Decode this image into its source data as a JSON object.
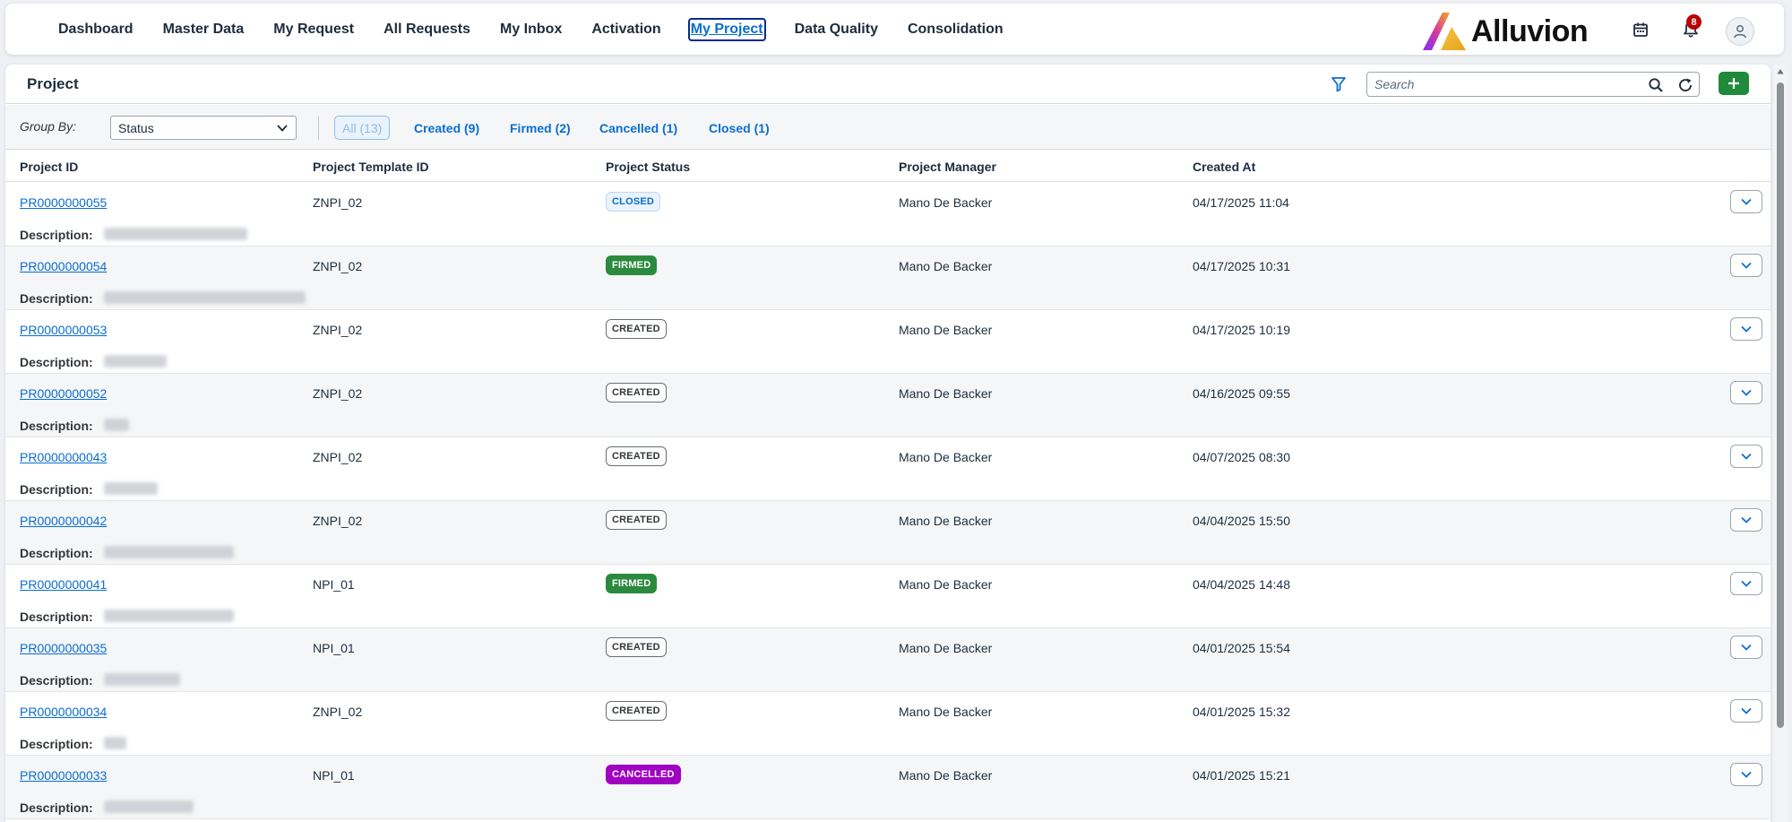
{
  "nav": {
    "items": [
      {
        "label": "Dashboard",
        "active": false
      },
      {
        "label": "Master Data",
        "active": false
      },
      {
        "label": "My Request",
        "active": false
      },
      {
        "label": "All Requests",
        "active": false
      },
      {
        "label": "My Inbox",
        "active": false
      },
      {
        "label": "Activation",
        "active": false
      },
      {
        "label": "My Project",
        "active": true
      },
      {
        "label": "Data Quality",
        "active": false
      },
      {
        "label": "Consolidation",
        "active": false
      }
    ],
    "logo_text": "Alluvion",
    "notification_count": "8",
    "icons": [
      "calendar-icon",
      "bell-icon",
      "user-icon"
    ]
  },
  "panel": {
    "title": "Project",
    "search_placeholder": "Search",
    "group_by_label": "Group By:",
    "group_by_value": "Status",
    "segments": [
      {
        "label": "All (13)",
        "selected": true
      },
      {
        "label": "Created (9)",
        "selected": false
      },
      {
        "label": "Firmed (2)",
        "selected": false
      },
      {
        "label": "Cancelled (1)",
        "selected": false
      },
      {
        "label": "Closed (1)",
        "selected": false
      }
    ]
  },
  "table": {
    "columns": [
      "Project ID",
      "Project Template ID",
      "Project Status",
      "Project Manager",
      "Created At"
    ],
    "description_label": "Description:",
    "rows": [
      {
        "id": "PR0000000055",
        "template": "ZNPI_02",
        "status": "CLOSED",
        "status_kind": "closed",
        "manager": "Mano De Backer",
        "created": "04/17/2025 11:04"
      },
      {
        "id": "PR0000000054",
        "template": "ZNPI_02",
        "status": "FIRMED",
        "status_kind": "firmed",
        "manager": "Mano De Backer",
        "created": "04/17/2025 10:31"
      },
      {
        "id": "PR0000000053",
        "template": "ZNPI_02",
        "status": "CREATED",
        "status_kind": "created",
        "manager": "Mano De Backer",
        "created": "04/17/2025 10:19"
      },
      {
        "id": "PR0000000052",
        "template": "ZNPI_02",
        "status": "CREATED",
        "status_kind": "created",
        "manager": "Mano De Backer",
        "created": "04/16/2025 09:55"
      },
      {
        "id": "PR0000000043",
        "template": "ZNPI_02",
        "status": "CREATED",
        "status_kind": "created",
        "manager": "Mano De Backer",
        "created": "04/07/2025 08:30"
      },
      {
        "id": "PR0000000042",
        "template": "ZNPI_02",
        "status": "CREATED",
        "status_kind": "created",
        "manager": "Mano De Backer",
        "created": "04/04/2025 15:50"
      },
      {
        "id": "PR0000000041",
        "template": "NPI_01",
        "status": "FIRMED",
        "status_kind": "firmed",
        "manager": "Mano De Backer",
        "created": "04/04/2025 14:48"
      },
      {
        "id": "PR0000000035",
        "template": "NPI_01",
        "status": "CREATED",
        "status_kind": "created",
        "manager": "Mano De Backer",
        "created": "04/01/2025 15:54"
      },
      {
        "id": "PR0000000034",
        "template": "ZNPI_02",
        "status": "CREATED",
        "status_kind": "created",
        "manager": "Mano De Backer",
        "created": "04/01/2025 15:32"
      },
      {
        "id": "PR0000000033",
        "template": "NPI_01",
        "status": "CANCELLED",
        "status_kind": "cancelled",
        "manager": "Mano De Backer",
        "created": "04/01/2025 15:21"
      }
    ]
  },
  "colors": {
    "accent": "#0a6ed1",
    "add_button": "#1f8a3b",
    "firmed": "#2b8a3e",
    "cancelled": "#a100c2",
    "notification": "#bb0000"
  }
}
